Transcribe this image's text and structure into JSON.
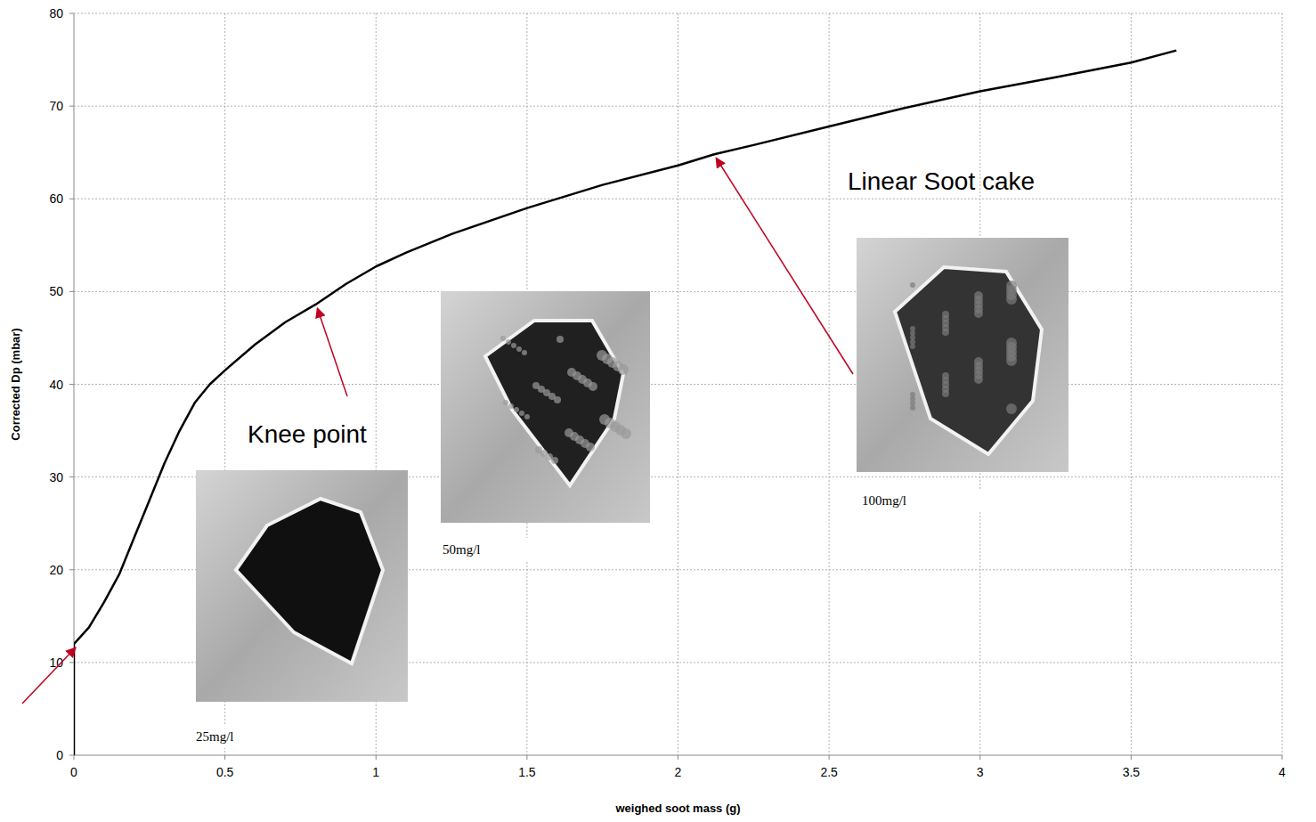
{
  "chart_data": {
    "type": "line",
    "x_label": "weighed soot mass (g)",
    "y_label": "Corrected Dp (mbar)",
    "x": [
      0,
      0,
      0.05,
      0.1,
      0.15,
      0.2,
      0.25,
      0.3,
      0.35,
      0.4,
      0.45,
      0.5,
      0.6,
      0.7,
      0.8,
      0.9,
      1,
      1.1,
      1.25,
      1.5,
      1.75,
      2,
      2.12,
      2.25,
      2.5,
      2.75,
      3,
      3.25,
      3.5,
      3.65
    ],
    "values": [
      0,
      12,
      13.8,
      16.5,
      19.5,
      23.5,
      27.5,
      31.5,
      35,
      38,
      40,
      41.5,
      44.3,
      46.7,
      48.6,
      50.8,
      52.7,
      54.2,
      56.2,
      59,
      61.5,
      63.6,
      64.8,
      65.8,
      67.8,
      69.8,
      71.6,
      73.1,
      74.7,
      76
    ],
    "color": "#000000",
    "xlim": [
      0,
      4
    ],
    "xticks": [
      0,
      0.5,
      1,
      1.5,
      2,
      2.5,
      3,
      3.5,
      4
    ],
    "ylim": [
      0,
      80
    ],
    "yticks": [
      0,
      10,
      20,
      30,
      40,
      50,
      60,
      70,
      80
    ],
    "grid": true,
    "annotations": [
      "Knee point",
      "Linear Soot cake"
    ],
    "image_labels": [
      "25mg/l",
      "50mg/l",
      "100mg/l"
    ]
  }
}
